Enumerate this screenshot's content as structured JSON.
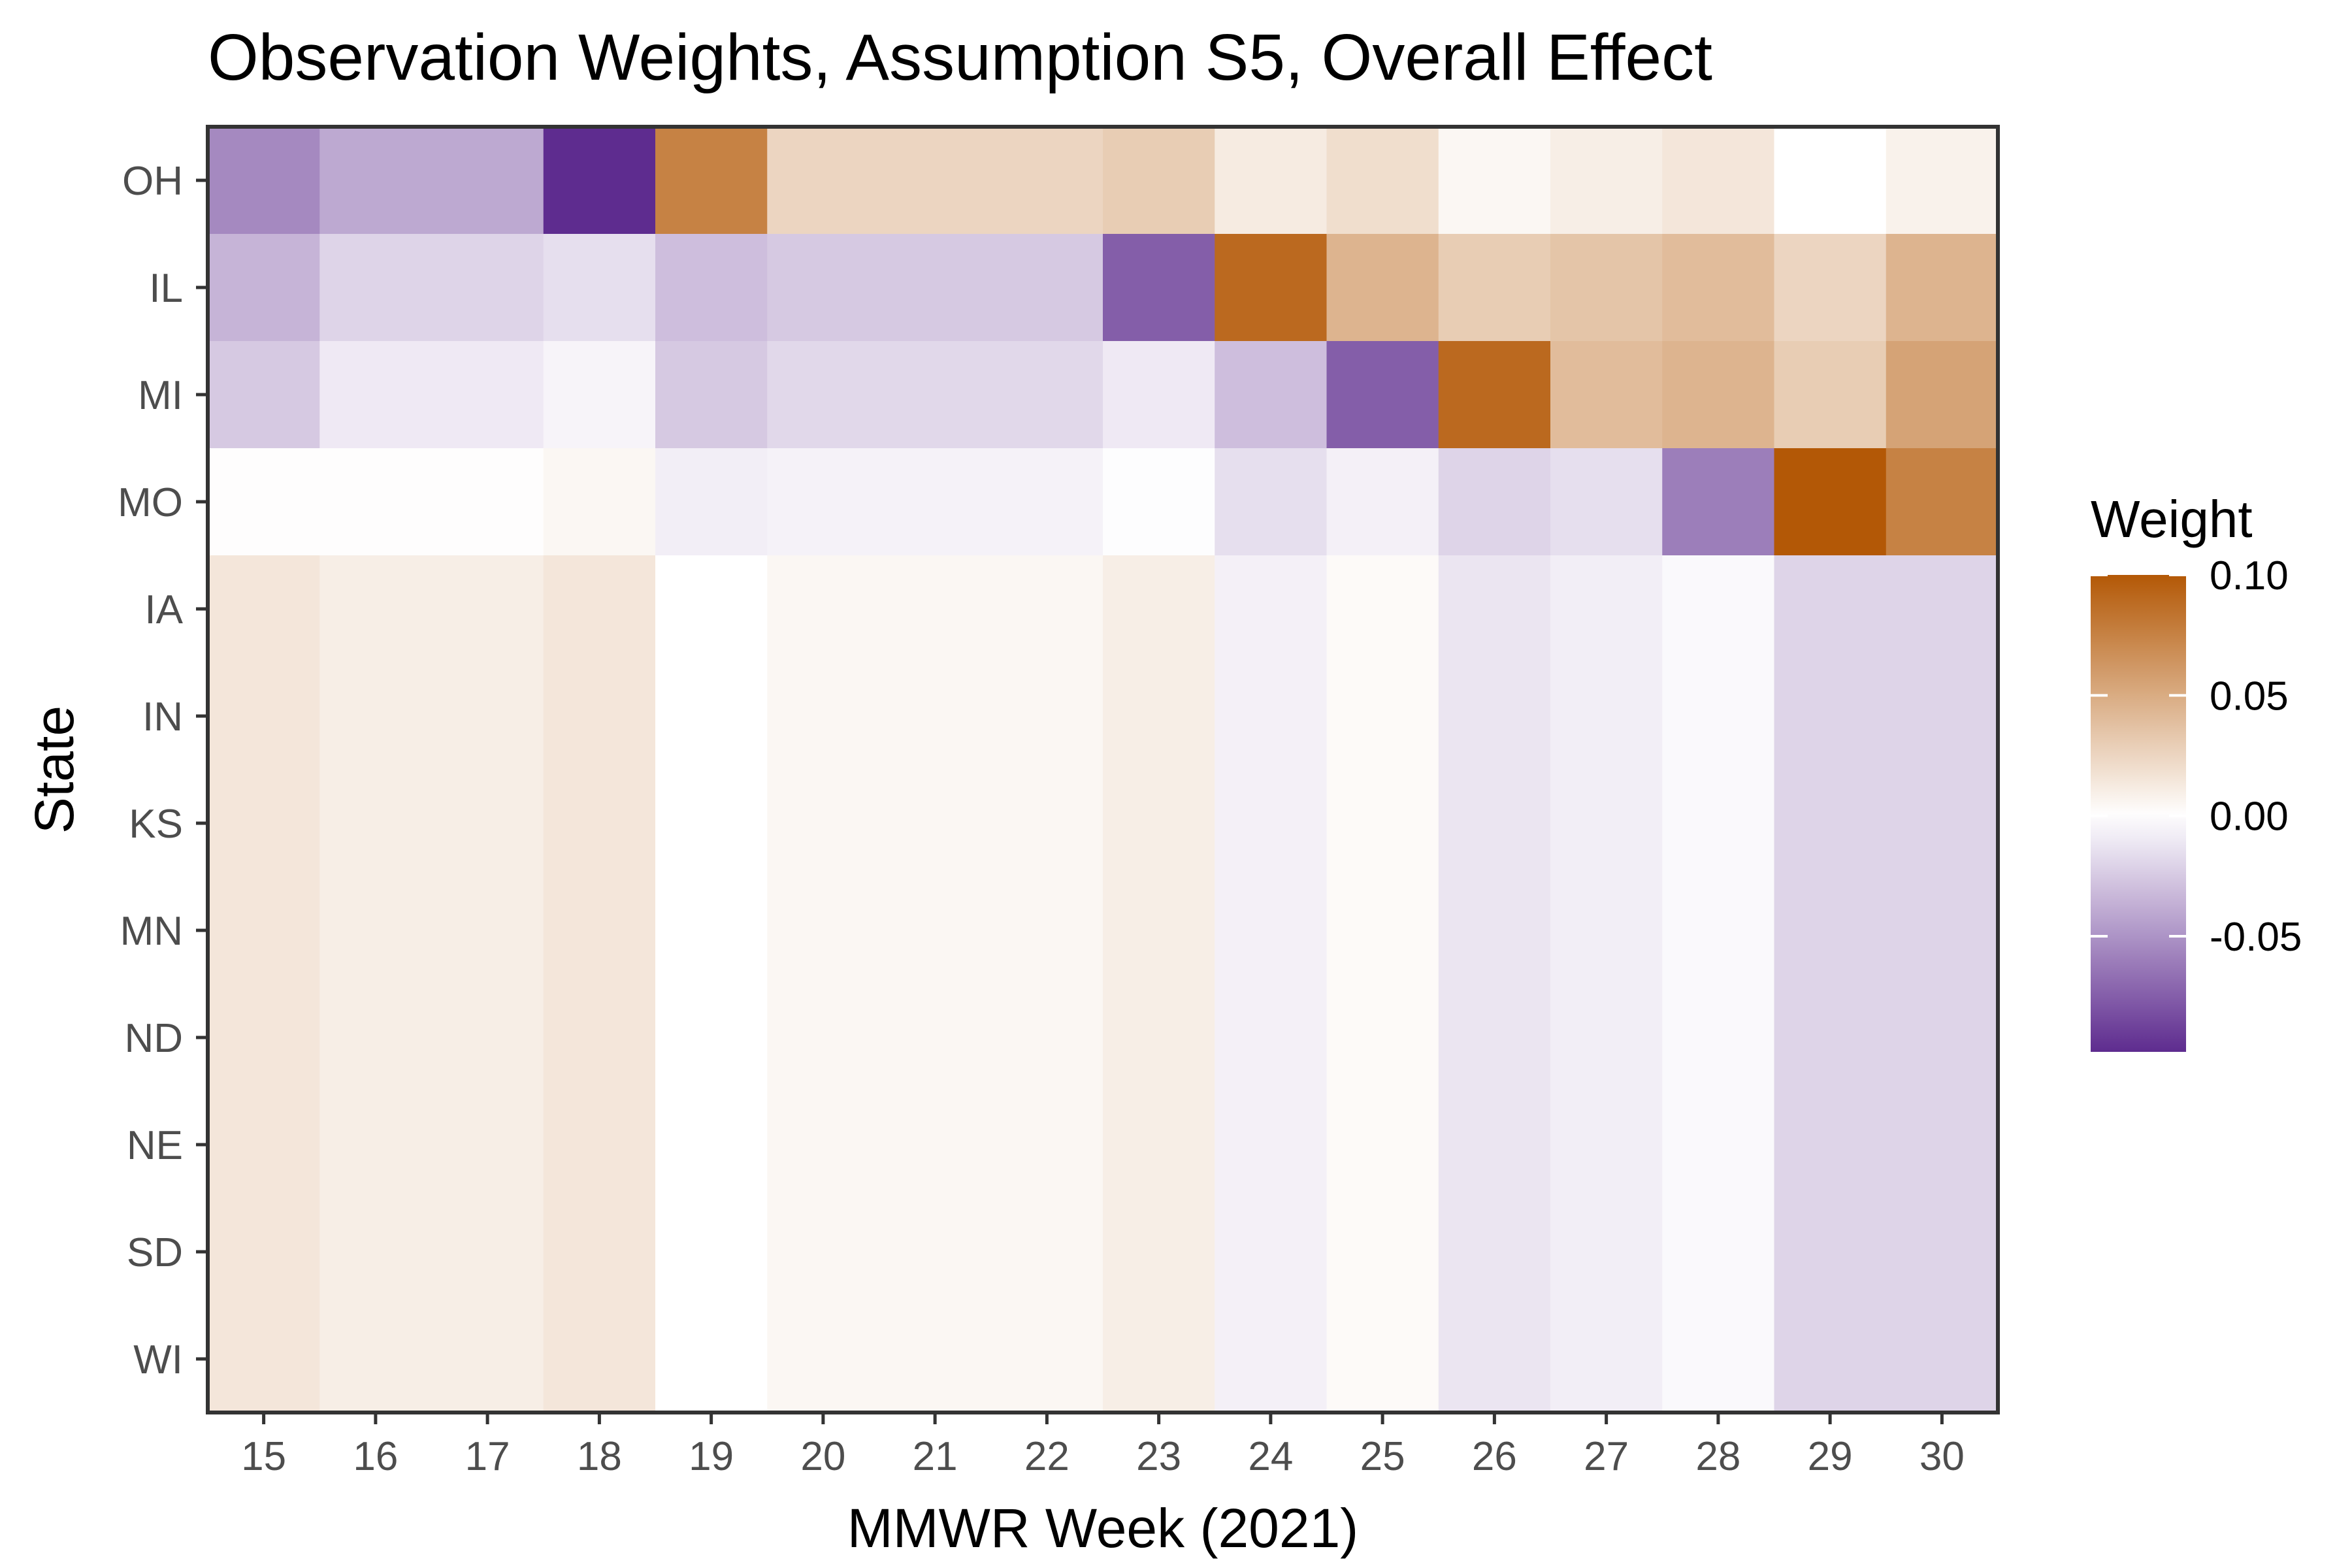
{
  "chart_data": {
    "type": "heatmap",
    "title": "Observation Weights, Assumption S5, Overall Effect",
    "xlabel": "MMWR Week (2021)",
    "ylabel": "State",
    "x": [
      15,
      16,
      17,
      18,
      19,
      20,
      21,
      22,
      23,
      24,
      25,
      26,
      27,
      28,
      29,
      30
    ],
    "y": [
      "OH",
      "IL",
      "MI",
      "MO",
      "IA",
      "IN",
      "KS",
      "MN",
      "ND",
      "NE",
      "SD",
      "WI"
    ],
    "values": [
      [
        -0.055,
        -0.04,
        -0.04,
        -0.098,
        0.075,
        0.025,
        0.025,
        0.025,
        0.03,
        0.012,
        0.02,
        0.005,
        0.01,
        0.015,
        0.0,
        0.008
      ],
      [
        -0.035,
        -0.02,
        -0.02,
        -0.015,
        -0.03,
        -0.025,
        -0.025,
        -0.025,
        -0.075,
        0.09,
        0.045,
        0.03,
        0.035,
        0.04,
        0.025,
        0.045
      ],
      [
        -0.025,
        -0.01,
        -0.01,
        -0.005,
        -0.025,
        -0.018,
        -0.018,
        -0.018,
        -0.01,
        -0.03,
        -0.075,
        0.09,
        0.04,
        0.045,
        0.03,
        0.055
      ],
      [
        0.001,
        0.001,
        0.001,
        0.005,
        -0.008,
        -0.006,
        -0.006,
        -0.006,
        -0.001,
        -0.015,
        -0.007,
        -0.02,
        -0.015,
        -0.06,
        0.1,
        0.075
      ],
      [
        0.015,
        0.01,
        0.01,
        0.015,
        0.0,
        0.005,
        0.005,
        0.005,
        0.01,
        -0.007,
        0.003,
        -0.012,
        -0.008,
        -0.003,
        -0.02,
        -0.02
      ],
      [
        0.015,
        0.01,
        0.01,
        0.015,
        0.0,
        0.005,
        0.005,
        0.005,
        0.01,
        -0.007,
        0.003,
        -0.012,
        -0.008,
        -0.003,
        -0.02,
        -0.02
      ],
      [
        0.015,
        0.01,
        0.01,
        0.015,
        0.0,
        0.005,
        0.005,
        0.005,
        0.01,
        -0.007,
        0.003,
        -0.012,
        -0.008,
        -0.003,
        -0.02,
        -0.02
      ],
      [
        0.015,
        0.01,
        0.01,
        0.015,
        0.0,
        0.005,
        0.005,
        0.005,
        0.01,
        -0.007,
        0.003,
        -0.012,
        -0.008,
        -0.003,
        -0.02,
        -0.02
      ],
      [
        0.015,
        0.01,
        0.01,
        0.015,
        0.0,
        0.005,
        0.005,
        0.005,
        0.01,
        -0.007,
        0.003,
        -0.012,
        -0.008,
        -0.003,
        -0.02,
        -0.02
      ],
      [
        0.015,
        0.01,
        0.01,
        0.015,
        0.0,
        0.005,
        0.005,
        0.005,
        0.01,
        -0.007,
        0.003,
        -0.012,
        -0.008,
        -0.003,
        -0.02,
        -0.02
      ],
      [
        0.015,
        0.01,
        0.01,
        0.015,
        0.0,
        0.005,
        0.005,
        0.005,
        0.01,
        -0.007,
        0.003,
        -0.012,
        -0.008,
        -0.003,
        -0.02,
        -0.02
      ],
      [
        0.015,
        0.01,
        0.01,
        0.015,
        0.0,
        0.005,
        0.005,
        0.005,
        0.01,
        -0.007,
        0.003,
        -0.012,
        -0.008,
        -0.003,
        -0.02,
        -0.02
      ]
    ],
    "legend": {
      "title": "Weight",
      "placement": "right",
      "range": [
        -0.098,
        0.1
      ],
      "ticks": [
        0.1,
        0.05,
        0.0,
        -0.05
      ],
      "tick_labels": [
        "0.10",
        "0.05",
        "0.00",
        "-0.05"
      ],
      "colors": {
        "low": "#5e2c8f",
        "mid": "#ffffff",
        "high": "#b35806"
      }
    },
    "grid": false
  }
}
